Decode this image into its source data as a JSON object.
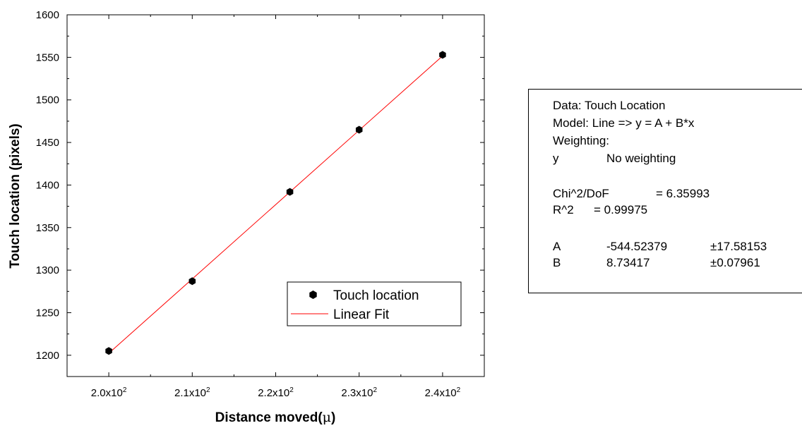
{
  "chart_data": {
    "type": "scatter",
    "xlabel": "Distance moved(",
    "xlabel_unit": "μ",
    "xlabel_close": ")",
    "ylabel": "Touch location (pixels)",
    "xlim": [
      195,
      245
    ],
    "ylim": [
      1175,
      1600
    ],
    "x_ticks": [
      200,
      210,
      220,
      230,
      240
    ],
    "x_tick_labels": [
      {
        "base": "2.0x10",
        "exp": "2"
      },
      {
        "base": "2.1x10",
        "exp": "2"
      },
      {
        "base": "2.2x10",
        "exp": "2"
      },
      {
        "base": "2.3x10",
        "exp": "2"
      },
      {
        "base": "2.4x10",
        "exp": "2"
      }
    ],
    "y_ticks": [
      1200,
      1250,
      1300,
      1350,
      1400,
      1450,
      1500,
      1550,
      1600
    ],
    "y_tick_labels": [
      "1200",
      "1250",
      "1300",
      "1350",
      "1400",
      "1450",
      "1500",
      "1550",
      "1600"
    ],
    "grid": false,
    "legend_position": "lower-right",
    "series": [
      {
        "name": "Touch location",
        "kind": "points",
        "color": "#000000",
        "x": [
          200,
          210,
          221.7,
          230,
          240
        ],
        "y": [
          1205,
          1287,
          1392,
          1465,
          1553
        ]
      },
      {
        "name": "Linear Fit",
        "kind": "line",
        "color": "#ff0000",
        "x": [
          200,
          240
        ],
        "y": [
          1202.31,
          1551.68
        ]
      }
    ],
    "fit_stats": {
      "data_line": "Data: Touch Location",
      "model_line": "Model: Line => y = A + B*x",
      "weighting_line": "Weighting:",
      "y_label": "y",
      "y_value": "No weighting",
      "chi_label": "Chi^2/DoF",
      "chi_value": "= 6.35993",
      "r2_label": "R^2",
      "r2_value": "=  0.99975",
      "params": [
        {
          "name": "A",
          "value": "-544.52379",
          "error": "±17.58153"
        },
        {
          "name": "B",
          "value": "8.73417",
          "error": "±0.07961"
        }
      ]
    }
  }
}
